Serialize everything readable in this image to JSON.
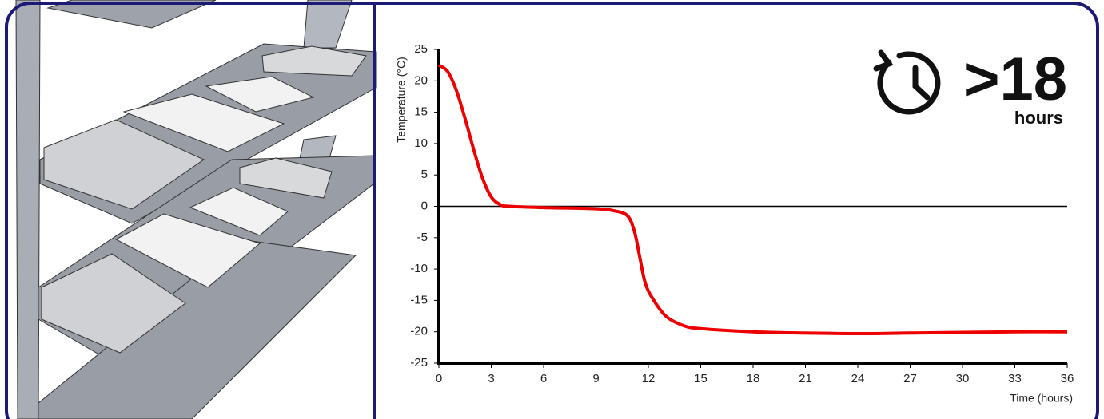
{
  "chart_data": {
    "type": "line",
    "x_label": "Time (hours)",
    "y_label": "Temperature (°C)",
    "annotation": {
      "value": ">18",
      "unit": "hours"
    },
    "x": [
      0,
      0.5,
      1,
      1.5,
      2,
      2.5,
      3,
      3.5,
      4,
      6,
      9,
      10,
      10.8,
      11.2,
      11.5,
      11.8,
      12.2,
      13,
      14,
      15,
      18,
      21,
      24,
      27,
      30,
      33,
      36
    ],
    "values": [
      22.5,
      21.5,
      18.5,
      14,
      9,
      4.5,
      1.5,
      0.3,
      0,
      -0.2,
      -0.4,
      -0.7,
      -1.5,
      -4,
      -8,
      -12,
      -14.5,
      -17.5,
      -19,
      -19.5,
      -20,
      -20.2,
      -20.3,
      -20.2,
      -20.1,
      -20,
      -20
    ],
    "color": "#ee0000",
    "xlim": [
      0,
      36
    ],
    "xticks": [
      0,
      3,
      6,
      9,
      12,
      15,
      18,
      21,
      24,
      27,
      30,
      33,
      36
    ],
    "ylim": [
      -25,
      25
    ],
    "yticks": [
      -25,
      -20,
      -15,
      -10,
      -5,
      0,
      5,
      10,
      15,
      20,
      25
    ],
    "zero_line": true
  }
}
